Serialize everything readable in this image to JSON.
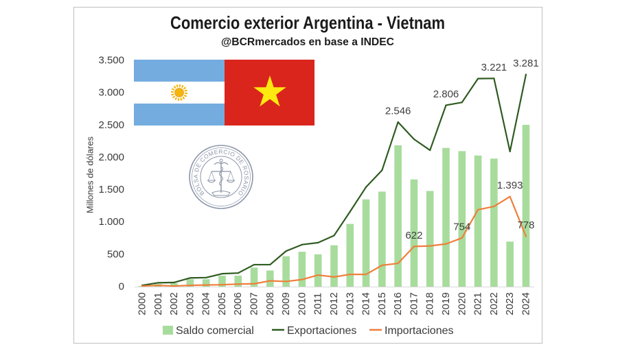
{
  "chart_data": {
    "type": "bar",
    "title": "Comercio exterior Argentina - Vietnam",
    "subtitle": "@BCRmercados en base a INDEC",
    "ylabel": "Millones de dólares",
    "categories": [
      "2000",
      "2001",
      "2002",
      "2003",
      "2004",
      "2005",
      "2006",
      "2007",
      "2008",
      "2009",
      "2010",
      "2011",
      "2012",
      "2013",
      "2014",
      "2015",
      "2016",
      "2017",
      "2018",
      "2019",
      "2020",
      "2021",
      "2022",
      "2023",
      "2024"
    ],
    "ylim": [
      0,
      3500
    ],
    "y_ticks": [
      0,
      500,
      1000,
      1500,
      2000,
      2500,
      3000,
      3500
    ],
    "y_tick_labels": [
      "0",
      "500",
      "1.000",
      "1.500",
      "2.000",
      "2.500",
      "3.000",
      "3.500"
    ],
    "grid": false,
    "legend": "bottom",
    "series": [
      {
        "name": "Saldo comercial",
        "type": "bar",
        "color": "#a8dc9d",
        "values": [
          10,
          40,
          55,
          115,
          115,
          170,
          170,
          295,
          250,
          470,
          540,
          500,
          640,
          970,
          1350,
          1470,
          2186,
          1658,
          1480,
          2146,
          2096,
          2028,
          1981,
          697,
          2503
        ]
      },
      {
        "name": "Exportaciones",
        "type": "line",
        "color": "#2e5b20",
        "values": [
          20,
          60,
          65,
          135,
          140,
          200,
          210,
          340,
          340,
          550,
          650,
          680,
          790,
          1160,
          1540,
          1800,
          2546,
          2280,
          2110,
          2806,
          2850,
          3218,
          3221,
          2090,
          3281
        ],
        "labels": [
          {
            "x": "2016",
            "text": "2.546"
          },
          {
            "x": "2019",
            "text": "2.806"
          },
          {
            "x": "2022",
            "text": "3.221"
          },
          {
            "x": "2024",
            "text": "3.281"
          }
        ]
      },
      {
        "name": "Importaciones",
        "type": "line",
        "color": "#ee7f3b",
        "values": [
          10,
          20,
          10,
          20,
          25,
          30,
          40,
          45,
          90,
          80,
          110,
          180,
          150,
          190,
          190,
          330,
          360,
          622,
          630,
          660,
          754,
          1190,
          1240,
          1393,
          778
        ],
        "labels": [
          {
            "x": "2017",
            "text": "622"
          },
          {
            "x": "2020",
            "text": "754"
          },
          {
            "x": "2023",
            "text": "1.393"
          },
          {
            "x": "2024",
            "text": "778"
          }
        ]
      }
    ]
  },
  "decorations": {
    "flags": [
      {
        "icon": "argentina-flag",
        "colors": {
          "stripe": "#74acdf",
          "band": "#ffffff",
          "sun": "#f6b40e"
        }
      },
      {
        "icon": "vietnam-flag",
        "colors": {
          "field": "#da251d",
          "star": "#fde910"
        }
      }
    ],
    "seal": {
      "icon": "bolsa-de-comercio-de-rosario-seal",
      "text": "BOLSA DE COMERCIO DE ROSARIO",
      "color": "#8b95a8"
    }
  }
}
